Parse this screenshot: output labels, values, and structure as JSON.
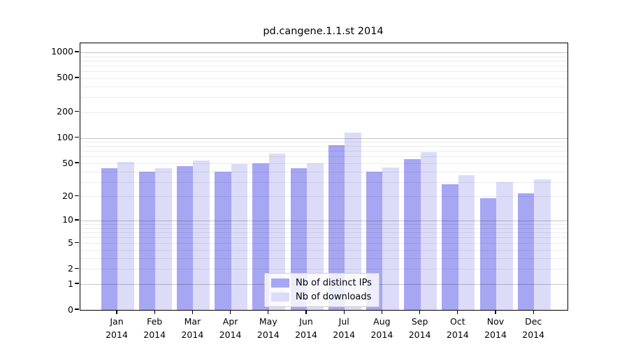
{
  "chart_data": {
    "type": "bar",
    "title": "pd.cangene.1.1.st 2014",
    "categories": [
      "Jan 2014",
      "Feb 2014",
      "Mar 2014",
      "Apr 2014",
      "May 2014",
      "Jun 2014",
      "Jul 2014",
      "Aug 2014",
      "Sep 2014",
      "Oct 2014",
      "Nov 2014",
      "Dec 2014"
    ],
    "series": [
      {
        "name": "Nb of distinct IPs",
        "color": "#a6a6f3",
        "values": [
          44,
          40,
          46,
          40,
          50,
          44,
          82,
          40,
          56,
          28,
          19,
          22
        ]
      },
      {
        "name": "Nb of downloads",
        "color": "#dcdcf9",
        "values": [
          52,
          44,
          54,
          49,
          65,
          50,
          115,
          45,
          68,
          36,
          30,
          32
        ]
      }
    ],
    "xlabel": "",
    "ylabel": "",
    "yscale": "log1p",
    "y_ticks": [
      0,
      1,
      2,
      5,
      10,
      20,
      50,
      100,
      200,
      500,
      1000
    ],
    "y_major_gridlines": [
      1,
      10,
      100,
      1000
    ],
    "y_minor_gridlines": [
      2,
      3,
      4,
      5,
      6,
      7,
      8,
      9,
      20,
      30,
      40,
      50,
      60,
      70,
      80,
      90,
      200,
      300,
      400,
      500,
      600,
      700,
      800,
      900
    ],
    "ylim": [
      0,
      1300
    ],
    "grid": "both",
    "legend_position": "bottom-center-inside"
  }
}
